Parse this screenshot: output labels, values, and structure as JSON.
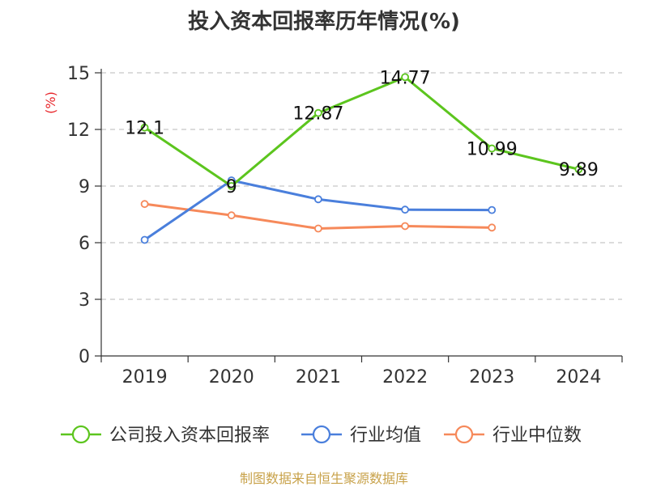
{
  "title": "投入资本回报率历年情况(%)",
  "source": "制图数据来自恒生聚源数据库",
  "chart_data": {
    "type": "line",
    "title": "投入资本回报率历年情况(%)",
    "ylabel": "(%)",
    "ylabel_color": "#e8262b",
    "categories": [
      "2019",
      "2020",
      "2021",
      "2022",
      "2023",
      "2024"
    ],
    "ylim": [
      0,
      15
    ],
    "yticks": [
      0,
      3,
      6,
      9,
      12,
      15
    ],
    "ytick_labels": [
      "0",
      "3",
      "6",
      "9",
      "12",
      "15"
    ],
    "grid": "horizontal-dashed",
    "legend_position": "bottom",
    "series": [
      {
        "name": "公司投入资本回报率",
        "color": "#5cc51e",
        "values": [
          12.1,
          9,
          12.87,
          14.77,
          10.99,
          9.89
        ],
        "labels": [
          "12.1",
          "9",
          "12.87",
          "14.77",
          "10.99",
          "9.89"
        ]
      },
      {
        "name": "行业均值",
        "color": "#4a7fdc",
        "values": [
          6.15,
          9.3,
          8.3,
          7.75,
          7.73,
          null
        ],
        "labels": null
      },
      {
        "name": "行业中位数",
        "color": "#f6895a",
        "values": [
          8.05,
          7.45,
          6.75,
          6.88,
          6.8,
          null
        ],
        "labels": null
      }
    ]
  }
}
